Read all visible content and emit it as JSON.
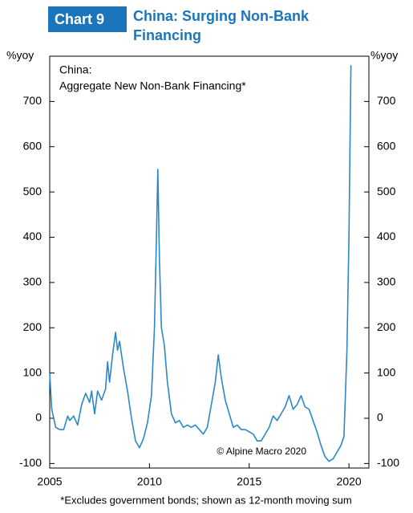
{
  "chart_data": {
    "type": "line",
    "chart_label": "Chart 9",
    "title": "China: Surging Non-Bank Financing",
    "plot_title_lines": [
      "China:",
      "Aggregate New Non-Bank Financing*"
    ],
    "y_axis_label": "%yoy",
    "y2_axis_label": "%yoy",
    "credit": "© Alpine Macro 2020",
    "footnote": "*Excludes government bonds; shown as 12-month moving sum",
    "x": [
      2005.0,
      2005.1,
      2005.3,
      2005.5,
      2005.7,
      2005.9,
      2006.0,
      2006.2,
      2006.4,
      2006.6,
      2006.8,
      2007.0,
      2007.1,
      2007.25,
      2007.4,
      2007.6,
      2007.8,
      2007.9,
      2008.0,
      2008.15,
      2008.3,
      2008.4,
      2008.5,
      2008.7,
      2008.9,
      2009.1,
      2009.3,
      2009.5,
      2009.7,
      2009.9,
      2010.1,
      2010.25,
      2010.35,
      2010.42,
      2010.5,
      2010.6,
      2010.75,
      2010.9,
      2011.1,
      2011.3,
      2011.5,
      2011.7,
      2011.9,
      2012.1,
      2012.3,
      2012.5,
      2012.7,
      2012.9,
      2013.1,
      2013.3,
      2013.45,
      2013.6,
      2013.8,
      2014.0,
      2014.2,
      2014.4,
      2014.6,
      2014.8,
      2015.0,
      2015.2,
      2015.4,
      2015.6,
      2015.8,
      2016.0,
      2016.2,
      2016.4,
      2016.6,
      2016.8,
      2017.0,
      2017.2,
      2017.4,
      2017.6,
      2017.8,
      2018.0,
      2018.2,
      2018.4,
      2018.6,
      2018.8,
      2019.0,
      2019.2,
      2019.4,
      2019.6,
      2019.75,
      2019.9,
      2020.0,
      2020.1
    ],
    "series": [
      {
        "name": "Aggregate New Non-Bank Financing",
        "color": "#2a88c8",
        "values": [
          100,
          20,
          -20,
          -25,
          -25,
          5,
          -5,
          5,
          -15,
          30,
          55,
          35,
          60,
          10,
          60,
          40,
          65,
          125,
          80,
          140,
          190,
          150,
          170,
          110,
          60,
          0,
          -50,
          -65,
          -45,
          -10,
          50,
          200,
          400,
          550,
          350,
          200,
          160,
          80,
          10,
          -10,
          -5,
          -20,
          -15,
          -20,
          -15,
          -25,
          -35,
          -20,
          30,
          80,
          140,
          90,
          40,
          10,
          -20,
          -15,
          -25,
          -25,
          -30,
          -35,
          -50,
          -50,
          -35,
          -20,
          5,
          -5,
          10,
          25,
          50,
          20,
          30,
          50,
          25,
          20,
          -5,
          -30,
          -60,
          -85,
          -95,
          -90,
          -75,
          -60,
          -40,
          150,
          400,
          780
        ]
      }
    ],
    "xlim": [
      2005,
      2021
    ],
    "xticks": [
      2005,
      2010,
      2015,
      2020
    ],
    "ylim": [
      -110,
      800
    ],
    "yticks": [
      -100,
      0,
      100,
      200,
      300,
      400,
      500,
      600,
      700
    ]
  }
}
